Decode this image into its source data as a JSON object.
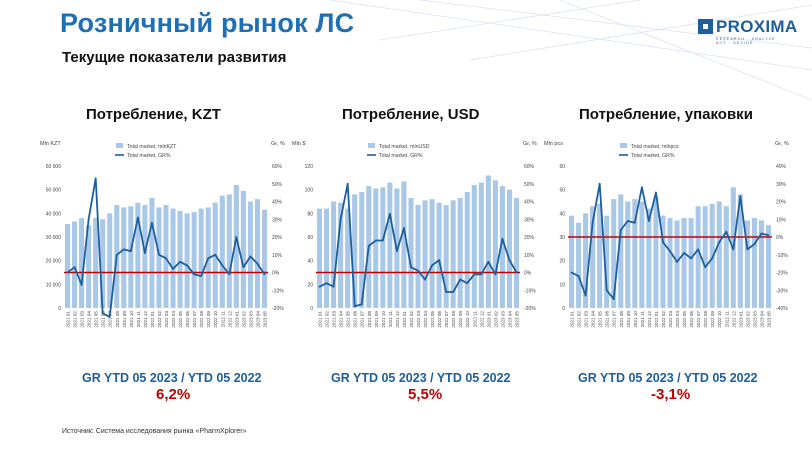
{
  "header": {
    "title": "Розничный рынок ЛС",
    "subtitle": "Текущие показатели развития",
    "logo_text": "PROXIMA",
    "logo_tagline": "RESEARCH · ANALYZE · ACT · DECIDE"
  },
  "charts": [
    {
      "title": "Потребление, KZT",
      "gr_label": "GR YTD 05 2023  /  YTD 05 2022",
      "gr_value": "6,2%"
    },
    {
      "title": "Потребление, USD",
      "gr_label": "GR YTD 05 2023  /  YTD 05 2022",
      "gr_value": "5,5%"
    },
    {
      "title": "Потребление, упаковки",
      "gr_label": "GR YTD 05 2023  /  YTD 05 2022",
      "gr_value": "-3,1%"
    }
  ],
  "source": "Источник: Система исследования рынка «PharmXplorer»",
  "colors": {
    "bar": "#a9c8e8",
    "line": "#1d5f9e",
    "zero_line": "#c00000",
    "accent": "#1f6fb5"
  },
  "chart_data": [
    {
      "type": "bar",
      "title": "Потребление, KZT",
      "ylabel": "Mln KZT",
      "y2label": "Gr, %",
      "categories": [
        "2021 01",
        "2021 02",
        "2021 03",
        "2021 04",
        "2021 05",
        "2021 06",
        "2021 07",
        "2021 08",
        "2021 09",
        "2021 10",
        "2021 11",
        "2021 12",
        "2022 01",
        "2022 02",
        "2022 03",
        "2022 04",
        "2022 05",
        "2022 06",
        "2022 07",
        "2022 08",
        "2022 09",
        "2022 10",
        "2022 11",
        "2022 12",
        "2023 01",
        "2023 02",
        "2023 03",
        "2023 04",
        "2023 05"
      ],
      "ylim": [
        0,
        60000
      ],
      "yticks": [
        0,
        10000,
        20000,
        30000,
        40000,
        50000,
        60000
      ],
      "ytick_labels": [
        "0",
        "10 000",
        "20 000",
        "30 000",
        "40 000",
        "50 000",
        "60 000"
      ],
      "y2lim": [
        -20,
        60
      ],
      "y2ticks": [
        -20,
        -10,
        0,
        10,
        20,
        30,
        40,
        50,
        60
      ],
      "y2tick_labels": [
        "-20%",
        "-10%",
        "0%",
        "10%",
        "20%",
        "30%",
        "40%",
        "50%",
        "60%"
      ],
      "zero_reference": 0,
      "series": [
        {
          "name": "Total market, mlnKZT",
          "type": "bar",
          "axis": "left",
          "values": [
            35500,
            36500,
            38000,
            35000,
            38000,
            37500,
            40000,
            43500,
            42500,
            43000,
            44500,
            43500,
            46500,
            42500,
            43500,
            42000,
            41000,
            40000,
            40500,
            42000,
            42500,
            44500,
            47500,
            48000,
            52000,
            49500,
            45000,
            46000,
            41500
          ]
        },
        {
          "name": "Total market, GR%",
          "type": "line",
          "axis": "right",
          "values": [
            0,
            3,
            -7,
            30,
            53,
            -23,
            -25,
            10,
            13,
            12,
            31,
            11,
            28,
            10,
            8,
            2,
            6,
            4,
            -1,
            -2,
            8,
            10,
            4,
            -1,
            20,
            3,
            9,
            5,
            -1
          ]
        }
      ],
      "legend": "top-center",
      "grid": false
    },
    {
      "type": "bar",
      "title": "Потребление, USD",
      "ylabel": "Mln $",
      "y2label": "Gr, %",
      "categories": [
        "2021 01",
        "2021 02",
        "2021 03",
        "2021 04",
        "2021 05",
        "2021 06",
        "2021 07",
        "2021 08",
        "2021 09",
        "2021 10",
        "2021 11",
        "2021 12",
        "2022 01",
        "2022 02",
        "2022 03",
        "2022 04",
        "2022 05",
        "2022 06",
        "2022 07",
        "2022 08",
        "2022 09",
        "2022 10",
        "2022 11",
        "2022 12",
        "2023 01",
        "2023 02",
        "2023 03",
        "2023 04",
        "2023 05"
      ],
      "ylim": [
        0,
        120
      ],
      "yticks": [
        0,
        20,
        40,
        60,
        80,
        100,
        120
      ],
      "ytick_labels": [
        "0",
        "20",
        "40",
        "60",
        "80",
        "100",
        "120"
      ],
      "y2lim": [
        -20,
        60
      ],
      "y2ticks": [
        -20,
        -10,
        0,
        10,
        20,
        30,
        40,
        50,
        60
      ],
      "y2tick_labels": [
        "-20%",
        "-10%",
        "0%",
        "10%",
        "20%",
        "30%",
        "40%",
        "50%",
        "60%"
      ],
      "zero_reference": 0,
      "series": [
        {
          "name": "Total market, mlnUSD",
          "type": "bar",
          "axis": "left",
          "values": [
            84,
            84,
            90,
            89,
            84,
            96,
            98,
            103,
            101,
            102,
            106,
            101,
            107,
            93,
            87,
            91,
            92,
            89,
            87,
            91,
            93,
            98,
            104,
            106,
            112,
            108,
            103,
            100,
            93
          ]
        },
        {
          "name": "Total market, GR%",
          "type": "line",
          "axis": "right",
          "values": [
            -8,
            -6,
            -8,
            30,
            50,
            -19,
            -18,
            15,
            18,
            18,
            33,
            12,
            25,
            3,
            1,
            -4,
            4,
            7,
            -11,
            -11,
            -4,
            -6,
            -1,
            -1,
            6,
            -1,
            19,
            7,
            0
          ]
        }
      ],
      "legend": "top-center",
      "grid": false
    },
    {
      "type": "bar",
      "title": "Потребление, упаковки",
      "ylabel": "Mln pcs",
      "y2label": "Gr, %",
      "categories": [
        "2021 01",
        "2021 02",
        "2021 03",
        "2021 04",
        "2021 05",
        "2021 06",
        "2021 07",
        "2021 08",
        "2021 09",
        "2021 10",
        "2021 11",
        "2021 12",
        "2022 01",
        "2022 02",
        "2022 03",
        "2022 04",
        "2022 05",
        "2022 06",
        "2022 07",
        "2022 08",
        "2022 09",
        "2022 10",
        "2022 11",
        "2022 12",
        "2023 01",
        "2023 02",
        "2023 03",
        "2023 04",
        "2023 05"
      ],
      "ylim": [
        0,
        60
      ],
      "yticks": [
        0,
        10,
        20,
        30,
        40,
        50,
        60
      ],
      "ytick_labels": [
        "0",
        "10",
        "20",
        "30",
        "40",
        "50",
        "60"
      ],
      "y2lim": [
        -40,
        40
      ],
      "y2ticks": [
        -40,
        -30,
        -20,
        -10,
        0,
        10,
        20,
        30,
        40
      ],
      "y2tick_labels": [
        "-40%",
        "-30%",
        "-20%",
        "-10%",
        "0%",
        "10%",
        "20%",
        "30%",
        "40%"
      ],
      "zero_reference": 0,
      "series": [
        {
          "name": "Total market, mlnpcs",
          "type": "bar",
          "axis": "left",
          "values": [
            39,
            36,
            40,
            43,
            44,
            39,
            46,
            48,
            45,
            46,
            45,
            42,
            47,
            39,
            38,
            37,
            38,
            38,
            43,
            43,
            44,
            45,
            43,
            51,
            48,
            37,
            38,
            37,
            35
          ]
        },
        {
          "name": "Total market, GR%",
          "type": "line",
          "axis": "right",
          "values": [
            -20,
            -22,
            -33,
            8,
            30,
            -30,
            -35,
            4,
            9,
            8,
            28,
            9,
            25,
            -3,
            -8,
            -14,
            -9,
            -12,
            -7,
            -17,
            -12,
            -3,
            3,
            -7,
            23,
            -7,
            -4,
            2,
            1
          ]
        }
      ],
      "legend": "top-center",
      "grid": false
    }
  ]
}
